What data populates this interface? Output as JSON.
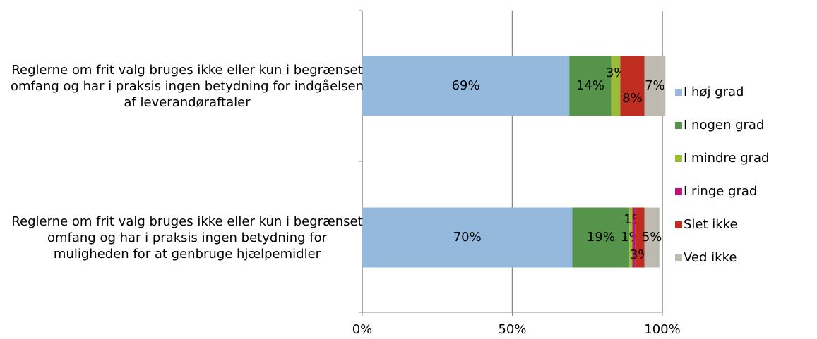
{
  "chart_data": {
    "type": "stacked-barh",
    "categories": [
      "Reglerne om frit valg bruges ikke eller kun i begrænset omfang og har i praksis ingen betydning for indgåelsen af leverandøraftaler",
      "Reglerne om frit valg bruges ikke eller kun i begrænset omfang og har i praksis ingen betydning for muligheden for at genbruge hjælpemidler"
    ],
    "series": [
      {
        "name": "I høj grad",
        "color": "#95b9dc",
        "values": [
          69,
          70
        ],
        "value_labels": [
          "69%",
          "70%"
        ]
      },
      {
        "name": "I nogen grad",
        "color": "#55944a",
        "values": [
          14,
          19
        ],
        "value_labels": [
          "14%",
          "19%"
        ]
      },
      {
        "name": "I mindre grad",
        "color": "#9bbb3c",
        "values": [
          3,
          1
        ],
        "value_labels": [
          "3%",
          "1%"
        ]
      },
      {
        "name": "I ringe grad",
        "color": "#c0107a",
        "values": [
          null,
          1
        ],
        "value_labels": [
          null,
          "1%"
        ]
      },
      {
        "name": "Slet ikke",
        "color": "#be2d1f",
        "values": [
          8,
          3
        ],
        "value_labels": [
          "8%",
          "3%"
        ]
      },
      {
        "name": "Ved ikke",
        "color": "#bfbab0",
        "values": [
          7,
          5
        ],
        "value_labels": [
          "7%",
          "5%"
        ]
      }
    ],
    "xlim": [
      0,
      100
    ],
    "xticks": [
      {
        "value": 0,
        "label": "0%"
      },
      {
        "value": 50,
        "label": "50%"
      },
      {
        "value": 100,
        "label": "100%"
      }
    ],
    "grid": true,
    "legend": "right"
  }
}
